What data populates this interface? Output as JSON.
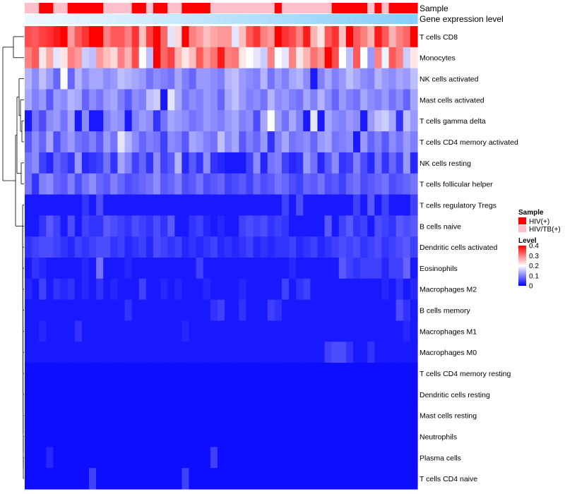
{
  "chart_data": {
    "type": "heatmap",
    "title": "",
    "annotation_tracks": [
      {
        "name": "Sample"
      },
      {
        "name": "Gene expression level"
      }
    ],
    "sample_track": [
      "HIV/TB(+)",
      "HIV/TB(+)",
      "HIV(+)",
      "HIV(+)",
      "HIV/TB(+)",
      "HIV/TB(+)",
      "HIV(+)",
      "HIV(+)",
      "HIV(+)",
      "HIV(+)",
      "HIV(+)",
      "HIV/TB(+)",
      "HIV/TB(+)",
      "HIV/TB(+)",
      "HIV/TB(+)",
      "HIV(+)",
      "HIV(+)",
      "HIV/TB(+)",
      "HIV(+)",
      "HIV(+)",
      "HIV/TB(+)",
      "HIV/TB(+)",
      "HIV(+)",
      "HIV(+)",
      "HIV(+)",
      "HIV(+)",
      "HIV/TB(+)",
      "HIV/TB(+)",
      "HIV/TB(+)",
      "HIV/TB(+)",
      "HIV/TB(+)",
      "HIV/TB(+)",
      "HIV/TB(+)",
      "HIV/TB(+)",
      "HIV/TB(+)",
      "HIV(+)",
      "HIV/TB(+)",
      "HIV/TB(+)",
      "HIV/TB(+)",
      "HIV/TB(+)",
      "HIV/TB(+)",
      "HIV/TB(+)",
      "HIV/TB(+)",
      "HIV(+)",
      "HIV(+)",
      "HIV(+)",
      "HIV(+)",
      "HIV(+)",
      "HIV/TB(+)",
      "HIV(+)",
      "HIV/TB(+)",
      "HIV(+)",
      "HIV(+)",
      "HIV(+)",
      "HIV(+)"
    ],
    "expression_track_range": [
      0,
      1
    ],
    "rows": [
      "T cells CD8",
      "Monocytes",
      "NK cells activated",
      "Mast cells activated",
      "T cells gamma delta",
      "T cells CD4 memory activated",
      "NK cells resting",
      "T cells follicular helper",
      "T cells regulatory  Tregs",
      "B cells naive",
      "Dendritic cells activated",
      "Eosinophils",
      "Macrophages M2",
      "B cells memory",
      "Macrophages M1",
      "Macrophages M0",
      "T cells CD4 memory resting",
      "Dendritic cells resting",
      "Mast cells resting",
      "Neutrophils",
      "Plasma cells",
      "T cells CD4 naive"
    ],
    "n_columns": 55,
    "values": [
      [
        0.34,
        0.33,
        0.35,
        0.36,
        0.38,
        0.4,
        0.28,
        0.33,
        0.36,
        0.4,
        0.4,
        0.3,
        0.33,
        0.33,
        0.3,
        0.36,
        0.25,
        0.35,
        0.4,
        0.32,
        0.18,
        0.23,
        0.4,
        0.3,
        0.28,
        0.25,
        0.27,
        0.28,
        0.28,
        0.18,
        0.25,
        0.33,
        0.36,
        0.3,
        0.28,
        0.4,
        0.36,
        0.34,
        0.3,
        0.38,
        0.26,
        0.22,
        0.33,
        0.36,
        0.25,
        0.4,
        0.33,
        0.3,
        0.26,
        0.38,
        0.33,
        0.26,
        0.3,
        0.32,
        0.4
      ],
      [
        0.3,
        0.33,
        0.22,
        0.27,
        0.18,
        0.22,
        0.3,
        0.28,
        0.16,
        0.15,
        0.28,
        0.25,
        0.23,
        0.3,
        0.26,
        0.34,
        0.2,
        0.15,
        0.4,
        0.32,
        0.35,
        0.26,
        0.22,
        0.25,
        0.33,
        0.28,
        0.31,
        0.38,
        0.3,
        0.31,
        0.22,
        0.2,
        0.18,
        0.16,
        0.3,
        0.2,
        0.18,
        0.3,
        0.22,
        0.26,
        0.31,
        0.28,
        0.4,
        0.34,
        0.2,
        0.15,
        0.33,
        0.2,
        0.12,
        0.3,
        0.19,
        0.33,
        0.3,
        0.16,
        0.22
      ],
      [
        0.14,
        0.11,
        0.15,
        0.12,
        0.08,
        0.2,
        0.08,
        0.14,
        0.11,
        0.13,
        0.13,
        0.11,
        0.12,
        0.15,
        0.14,
        0.13,
        0.12,
        0.09,
        0.11,
        0.1,
        0.09,
        0.13,
        0.1,
        0.08,
        0.12,
        0.12,
        0.11,
        0.1,
        0.14,
        0.15,
        0.12,
        0.11,
        0.1,
        0.14,
        0.09,
        0.12,
        0.1,
        0.13,
        0.14,
        0.11,
        0.02,
        0.1,
        0.13,
        0.1,
        0.12,
        0.15,
        0.13,
        0.11,
        0.1,
        0.14,
        0.12,
        0.11,
        0.13,
        0.12,
        0.15
      ],
      [
        0.13,
        0.1,
        0.12,
        0.07,
        0.12,
        0.11,
        0.14,
        0.13,
        0.08,
        0.11,
        0.09,
        0.12,
        0.13,
        0.1,
        0.07,
        0.11,
        0.1,
        0.15,
        0.16,
        0.02,
        0.18,
        0.13,
        0.09,
        0.11,
        0.1,
        0.12,
        0.11,
        0.08,
        0.13,
        0.15,
        0.12,
        0.1,
        0.11,
        0.09,
        0.14,
        0.11,
        0.12,
        0.1,
        0.09,
        0.13,
        0.1,
        0.14,
        0.11,
        0.08,
        0.12,
        0.1,
        0.09,
        0.13,
        0.11,
        0.1,
        0.12,
        0.09,
        0.11,
        0.08,
        0.13
      ],
      [
        0.02,
        0.09,
        0.06,
        0.11,
        0.12,
        0.09,
        0.13,
        0.02,
        0.11,
        0.02,
        0.02,
        0.1,
        0.12,
        0.11,
        0.02,
        0.1,
        0.12,
        0.11,
        0.04,
        0.09,
        0.13,
        0.12,
        0.11,
        0.09,
        0.1,
        0.12,
        0.11,
        0.1,
        0.12,
        0.13,
        0.1,
        0.11,
        0.06,
        0.13,
        0.2,
        0.12,
        0.09,
        0.13,
        0.1,
        0.02,
        0.18,
        0.02,
        0.13,
        0.11,
        0.1,
        0.12,
        0.11,
        0.02,
        0.12,
        0.15,
        0.16,
        0.13,
        0.04,
        0.15,
        0.12
      ],
      [
        0.07,
        0.11,
        0.08,
        0.13,
        0.06,
        0.1,
        0.12,
        0.09,
        0.08,
        0.1,
        0.07,
        0.12,
        0.09,
        0.18,
        0.14,
        0.11,
        0.08,
        0.1,
        0.09,
        0.05,
        0.11,
        0.1,
        0.07,
        0.13,
        0.12,
        0.1,
        0.09,
        0.15,
        0.11,
        0.13,
        0.07,
        0.1,
        0.08,
        0.12,
        0.04,
        0.1,
        0.13,
        0.09,
        0.1,
        0.11,
        0.08,
        0.12,
        0.13,
        0.09,
        0.1,
        0.11,
        0.02,
        0.12,
        0.08,
        0.1,
        0.07,
        0.11,
        0.09,
        0.12,
        0.1
      ],
      [
        0.09,
        0.11,
        0.05,
        0.03,
        0.08,
        0.06,
        0.04,
        0.12,
        0.03,
        0.04,
        0.05,
        0.09,
        0.04,
        0.13,
        0.1,
        0.05,
        0.08,
        0.04,
        0.11,
        0.05,
        0.07,
        0.14,
        0.03,
        0.07,
        0.04,
        0.11,
        0.04,
        0.03,
        0.02,
        0.02,
        0.02,
        0.05,
        0.11,
        0.03,
        0.09,
        0.1,
        0.05,
        0.03,
        0.04,
        0.12,
        0.09,
        0.03,
        0.07,
        0.11,
        0.04,
        0.05,
        0.1,
        0.06,
        0.03,
        0.09,
        0.04,
        0.08,
        0.05,
        0.12,
        0.03
      ],
      [
        0.09,
        0.04,
        0.1,
        0.11,
        0.08,
        0.07,
        0.1,
        0.06,
        0.09,
        0.11,
        0.08,
        0.07,
        0.1,
        0.08,
        0.06,
        0.07,
        0.08,
        0.09,
        0.11,
        0.07,
        0.08,
        0.1,
        0.06,
        0.07,
        0.09,
        0.06,
        0.07,
        0.08,
        0.05,
        0.06,
        0.07,
        0.05,
        0.08,
        0.06,
        0.07,
        0.09,
        0.08,
        0.06,
        0.05,
        0.08,
        0.07,
        0.09,
        0.06,
        0.07,
        0.05,
        0.08,
        0.09,
        0.06,
        0.07,
        0.08,
        0.09,
        0.06,
        0.07,
        0.08,
        0.09
      ],
      [
        0.02,
        0.02,
        0.02,
        0.02,
        0.02,
        0.02,
        0.02,
        0.02,
        0.04,
        0.02,
        0.06,
        0.02,
        0.02,
        0.02,
        0.02,
        0.02,
        0.02,
        0.02,
        0.02,
        0.02,
        0.02,
        0.02,
        0.02,
        0.02,
        0.02,
        0.02,
        0.02,
        0.02,
        0.02,
        0.02,
        0.02,
        0.02,
        0.02,
        0.02,
        0.02,
        0.02,
        0.05,
        0.02,
        0.06,
        0.02,
        0.02,
        0.02,
        0.02,
        0.02,
        0.02,
        0.02,
        0.05,
        0.02,
        0.07,
        0.02,
        0.05,
        0.02,
        0.02,
        0.02,
        0.05
      ],
      [
        0.02,
        0.02,
        0.04,
        0.07,
        0.05,
        0.02,
        0.06,
        0.02,
        0.05,
        0.04,
        0.04,
        0.07,
        0.06,
        0.05,
        0.04,
        0.06,
        0.05,
        0.04,
        0.06,
        0.04,
        0.07,
        0.02,
        0.02,
        0.04,
        0.05,
        0.03,
        0.02,
        0.03,
        0.02,
        0.02,
        0.05,
        0.06,
        0.05,
        0.06,
        0.04,
        0.05,
        0.04,
        0.02,
        0.02,
        0.02,
        0.02,
        0.02,
        0.07,
        0.02,
        0.05,
        0.07,
        0.04,
        0.05,
        0.02,
        0.06,
        0.05,
        0.04,
        0.07,
        0.06,
        0.07
      ],
      [
        0.04,
        0.05,
        0.06,
        0.06,
        0.05,
        0.04,
        0.03,
        0.05,
        0.04,
        0.05,
        0.06,
        0.06,
        0.04,
        0.05,
        0.03,
        0.04,
        0.05,
        0.03,
        0.06,
        0.05,
        0.04,
        0.05,
        0.03,
        0.04,
        0.03,
        0.04,
        0.05,
        0.03,
        0.04,
        0.03,
        0.04,
        0.05,
        0.03,
        0.04,
        0.03,
        0.04,
        0.04,
        0.05,
        0.03,
        0.04,
        0.05,
        0.03,
        0.04,
        0.05,
        0.06,
        0.05,
        0.06,
        0.04,
        0.05,
        0.06,
        0.04,
        0.05,
        0.06,
        0.07,
        0.05
      ],
      [
        0.02,
        0.04,
        0.03,
        0.02,
        0.02,
        0.02,
        0.02,
        0.02,
        0.03,
        0.02,
        0.09,
        0.02,
        0.02,
        0.02,
        0.03,
        0.02,
        0.02,
        0.02,
        0.02,
        0.02,
        0.02,
        0.02,
        0.02,
        0.02,
        0.05,
        0.02,
        0.02,
        0.02,
        0.02,
        0.02,
        0.02,
        0.02,
        0.02,
        0.02,
        0.02,
        0.02,
        0.02,
        0.03,
        0.02,
        0.02,
        0.02,
        0.02,
        0.02,
        0.02,
        0.07,
        0.05,
        0.04,
        0.05,
        0.05,
        0.05,
        0.03,
        0.05,
        0.05,
        0.08,
        0.02
      ],
      [
        0.03,
        0.02,
        0.05,
        0.02,
        0.04,
        0.03,
        0.04,
        0.02,
        0.03,
        0.02,
        0.04,
        0.02,
        0.03,
        0.02,
        0.02,
        0.02,
        0.05,
        0.02,
        0.02,
        0.03,
        0.02,
        0.03,
        0.02,
        0.02,
        0.02,
        0.03,
        0.02,
        0.02,
        0.02,
        0.02,
        0.03,
        0.02,
        0.02,
        0.02,
        0.02,
        0.02,
        0.05,
        0.02,
        0.04,
        0.05,
        0.02,
        0.02,
        0.02,
        0.02,
        0.02,
        0.02,
        0.02,
        0.02,
        0.02,
        0.02,
        0.03,
        0.02,
        0.04,
        0.02,
        0.03
      ],
      [
        0.02,
        0.02,
        0.02,
        0.02,
        0.02,
        0.02,
        0.02,
        0.02,
        0.02,
        0.02,
        0.02,
        0.02,
        0.02,
        0.02,
        0.04,
        0.02,
        0.02,
        0.02,
        0.02,
        0.02,
        0.02,
        0.02,
        0.02,
        0.02,
        0.02,
        0.02,
        0.04,
        0.05,
        0.02,
        0.02,
        0.04,
        0.02,
        0.02,
        0.02,
        0.05,
        0.04,
        0.02,
        0.02,
        0.02,
        0.02,
        0.02,
        0.02,
        0.02,
        0.02,
        0.02,
        0.02,
        0.02,
        0.02,
        0.02,
        0.02,
        0.02,
        0.02,
        0.06,
        0.04,
        0.02
      ],
      [
        0.02,
        0.02,
        0.03,
        0.02,
        0.02,
        0.02,
        0.02,
        0.04,
        0.02,
        0.02,
        0.02,
        0.02,
        0.02,
        0.02,
        0.02,
        0.02,
        0.02,
        0.02,
        0.02,
        0.02,
        0.02,
        0.02,
        0.03,
        0.02,
        0.02,
        0.02,
        0.02,
        0.02,
        0.02,
        0.02,
        0.02,
        0.02,
        0.02,
        0.02,
        0.02,
        0.02,
        0.02,
        0.02,
        0.02,
        0.02,
        0.02,
        0.02,
        0.02,
        0.02,
        0.02,
        0.02,
        0.02,
        0.02,
        0.02,
        0.02,
        0.02,
        0.02,
        0.02,
        0.03,
        0.02
      ],
      [
        0.02,
        0.02,
        0.02,
        0.02,
        0.02,
        0.02,
        0.02,
        0.02,
        0.02,
        0.02,
        0.02,
        0.02,
        0.02,
        0.02,
        0.02,
        0.02,
        0.02,
        0.02,
        0.02,
        0.02,
        0.02,
        0.02,
        0.02,
        0.02,
        0.02,
        0.02,
        0.02,
        0.02,
        0.02,
        0.02,
        0.02,
        0.02,
        0.02,
        0.02,
        0.02,
        0.02,
        0.02,
        0.02,
        0.02,
        0.02,
        0.02,
        0.02,
        0.05,
        0.06,
        0.06,
        0.04,
        0.02,
        0.02,
        0.04,
        0.02,
        0.02,
        0.02,
        0.02,
        0.02,
        0.02
      ],
      [
        0.01,
        0.01,
        0.01,
        0.01,
        0.01,
        0.01,
        0.01,
        0.01,
        0.01,
        0.01,
        0.01,
        0.01,
        0.01,
        0.01,
        0.01,
        0.01,
        0.01,
        0.01,
        0.01,
        0.01,
        0.01,
        0.01,
        0.01,
        0.01,
        0.01,
        0.01,
        0.01,
        0.01,
        0.01,
        0.01,
        0.01,
        0.01,
        0.01,
        0.01,
        0.01,
        0.01,
        0.01,
        0.01,
        0.01,
        0.01,
        0.01,
        0.01,
        0.01,
        0.01,
        0.01,
        0.01,
        0.01,
        0.01,
        0.01,
        0.01,
        0.01,
        0.01,
        0.01,
        0.01,
        0.01
      ],
      [
        0.01,
        0.01,
        0.01,
        0.01,
        0.01,
        0.01,
        0.01,
        0.01,
        0.01,
        0.01,
        0.01,
        0.01,
        0.01,
        0.01,
        0.01,
        0.01,
        0.01,
        0.01,
        0.01,
        0.01,
        0.01,
        0.01,
        0.01,
        0.01,
        0.01,
        0.01,
        0.01,
        0.01,
        0.01,
        0.01,
        0.01,
        0.01,
        0.01,
        0.01,
        0.01,
        0.01,
        0.01,
        0.01,
        0.01,
        0.01,
        0.01,
        0.01,
        0.01,
        0.01,
        0.01,
        0.01,
        0.01,
        0.01,
        0.01,
        0.01,
        0.01,
        0.01,
        0.01,
        0.01,
        0.01
      ],
      [
        0.01,
        0.01,
        0.01,
        0.01,
        0.01,
        0.01,
        0.01,
        0.01,
        0.01,
        0.01,
        0.01,
        0.01,
        0.01,
        0.01,
        0.01,
        0.01,
        0.01,
        0.01,
        0.01,
        0.01,
        0.01,
        0.01,
        0.01,
        0.01,
        0.01,
        0.01,
        0.01,
        0.01,
        0.01,
        0.01,
        0.01,
        0.01,
        0.01,
        0.01,
        0.01,
        0.01,
        0.01,
        0.01,
        0.01,
        0.01,
        0.01,
        0.01,
        0.01,
        0.01,
        0.01,
        0.01,
        0.01,
        0.01,
        0.01,
        0.01,
        0.01,
        0.01,
        0.01,
        0.01,
        0.01
      ],
      [
        0.01,
        0.01,
        0.01,
        0.01,
        0.01,
        0.01,
        0.01,
        0.01,
        0.01,
        0.01,
        0.01,
        0.01,
        0.01,
        0.01,
        0.01,
        0.01,
        0.01,
        0.01,
        0.01,
        0.01,
        0.01,
        0.01,
        0.01,
        0.01,
        0.01,
        0.01,
        0.01,
        0.01,
        0.01,
        0.01,
        0.01,
        0.01,
        0.01,
        0.01,
        0.01,
        0.01,
        0.01,
        0.01,
        0.01,
        0.01,
        0.01,
        0.01,
        0.01,
        0.01,
        0.01,
        0.01,
        0.01,
        0.01,
        0.01,
        0.01,
        0.01,
        0.01,
        0.01,
        0.01,
        0.01
      ],
      [
        0.01,
        0.01,
        0.01,
        0.03,
        0.01,
        0.01,
        0.01,
        0.01,
        0.01,
        0.01,
        0.01,
        0.01,
        0.01,
        0.01,
        0.01,
        0.01,
        0.01,
        0.01,
        0.01,
        0.01,
        0.01,
        0.01,
        0.01,
        0.01,
        0.01,
        0.01,
        0.05,
        0.01,
        0.01,
        0.01,
        0.01,
        0.01,
        0.01,
        0.01,
        0.01,
        0.01,
        0.01,
        0.01,
        0.01,
        0.01,
        0.01,
        0.01,
        0.01,
        0.01,
        0.01,
        0.01,
        0.01,
        0.01,
        0.01,
        0.01,
        0.01,
        0.01,
        0.01,
        0.01,
        0.01
      ],
      [
        0.01,
        0.01,
        0.01,
        0.01,
        0.01,
        0.01,
        0.01,
        0.01,
        0.01,
        0.05,
        0.01,
        0.01,
        0.01,
        0.01,
        0.01,
        0.01,
        0.01,
        0.01,
        0.01,
        0.01,
        0.01,
        0.01,
        0.05,
        0.01,
        0.01,
        0.01,
        0.01,
        0.01,
        0.01,
        0.01,
        0.01,
        0.01,
        0.01,
        0.01,
        0.01,
        0.01,
        0.01,
        0.01,
        0.01,
        0.01,
        0.01,
        0.01,
        0.01,
        0.01,
        0.01,
        0.01,
        0.01,
        0.01,
        0.01,
        0.01,
        0.01,
        0.01,
        0.01,
        0.01,
        0.01
      ]
    ],
    "colorscale": {
      "min": 0,
      "max": 0.4,
      "low": "#0000ff",
      "mid": "#ffffff",
      "high": "#ff0000",
      "mid_value": 0.2
    },
    "legend": {
      "sample_title": "Sample",
      "sample_entries": [
        {
          "label": "HIV(+)",
          "color": "#ff0000"
        },
        {
          "label": "HIV/TB(+)",
          "color": "#ffc0cb"
        }
      ],
      "level_title": "Level",
      "level_ticks": [
        "0.4",
        "0.3",
        "0.2",
        "0.1",
        "0"
      ],
      "level_tick_values": [
        0.4,
        0.3,
        0.2,
        0.1,
        0
      ],
      "position": "right"
    },
    "expression_colors": {
      "low": "#f0f8ff",
      "high": "#87cefa"
    }
  }
}
